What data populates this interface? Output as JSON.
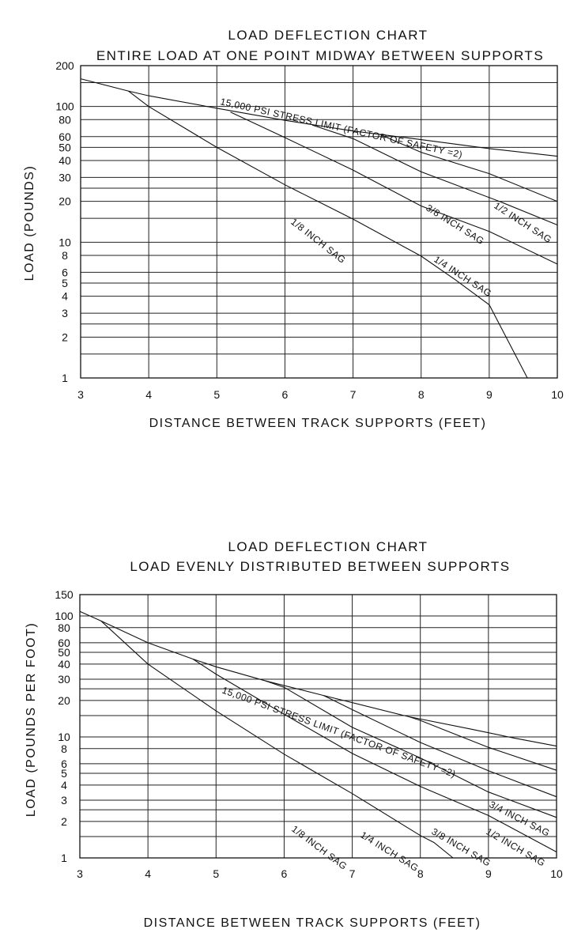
{
  "chart_data": [
    {
      "type": "line",
      "title": "LOAD DEFLECTION CHART",
      "subtitle": "ENTIRE LOAD AT ONE POINT MIDWAY BETWEEN SUPPORTS",
      "xlabel": "DISTANCE BETWEEN TRACK SUPPORTS (FEET)",
      "ylabel": "LOAD (POUNDS)",
      "xlim": [
        3,
        10
      ],
      "ylim": [
        1,
        200
      ],
      "yscale": "log",
      "grid": true,
      "xticks": [
        "3",
        "4",
        "5",
        "6",
        "7",
        "8",
        "9",
        "10"
      ],
      "yticks": [
        "200",
        "100",
        "80",
        "60",
        "50",
        "40",
        "30",
        "20",
        "10",
        "8",
        "6",
        "5",
        "4",
        "3",
        "2",
        "1"
      ],
      "series": [
        {
          "name": "15,000 PSI STRESS LIMIT (FACTOR OF SAFETY =2)",
          "x": [
            3,
            3.7,
            4,
            5,
            6,
            7,
            8,
            9,
            10
          ],
          "y": [
            160,
            130,
            120,
            97,
            79,
            66,
            57,
            49,
            43
          ]
        },
        {
          "name": "1/2 INCH SAG",
          "x": [
            7.4,
            8,
            9,
            10
          ],
          "y": [
            62,
            46,
            32,
            20
          ]
        },
        {
          "name": "3/8 INCH SAG",
          "x": [
            6.4,
            7,
            8,
            9.15,
            10
          ],
          "y": [
            73,
            58,
            33,
            20,
            13.4
          ]
        },
        {
          "name": "1/4 INCH SAG",
          "x": [
            5.2,
            6,
            7,
            8,
            9,
            10
          ],
          "y": [
            91,
            59,
            34,
            18.5,
            12,
            6.9
          ]
        },
        {
          "name": "1/8 INCH SAG",
          "x": [
            3.7,
            4,
            5,
            6,
            7,
            8,
            8.5,
            9,
            9.56
          ],
          "y": [
            130,
            100,
            50,
            26.5,
            14.8,
            7.9,
            5.3,
            3.46,
            1
          ]
        }
      ]
    },
    {
      "type": "line",
      "title": "LOAD DEFLECTION CHART",
      "subtitle": "LOAD EVENLY DISTRIBUTED BETWEEN SUPPORTS",
      "xlabel": "DISTANCE BETWEEN TRACK SUPPORTS (FEET)",
      "ylabel": "LOAD (POUNDS PER FOOT)",
      "xlim": [
        3,
        10
      ],
      "ylim": [
        1,
        150
      ],
      "yscale": "log",
      "grid": true,
      "xticks": [
        "3",
        "4",
        "5",
        "6",
        "7",
        "8",
        "9",
        "10"
      ],
      "yticks": [
        "150",
        "100",
        "80",
        "60",
        "50",
        "40",
        "30",
        "20",
        "10",
        "8",
        "6",
        "5",
        "4",
        "3",
        "2",
        "1"
      ],
      "series": [
        {
          "name": "15,000 PSI STRESS LIMIT (FACTOR OF SAFETY =2)",
          "x": [
            3,
            3.31,
            4,
            4.66,
            5,
            5.73,
            6.58,
            7.83,
            8.74,
            9.37,
            10
          ],
          "y": [
            109,
            91,
            60,
            44,
            38,
            29,
            22,
            14.7,
            11.6,
            9.8,
            8.4
          ]
        },
        {
          "name": "3/4 INCH SAG",
          "x": [
            7.83,
            8,
            9,
            10
          ],
          "y": [
            14.7,
            13.7,
            8.2,
            5.3
          ]
        },
        {
          "name": "1/2 INCH SAG",
          "x": [
            6.58,
            7,
            8,
            9,
            10
          ],
          "y": [
            22,
            16.8,
            9,
            5.25,
            3.2
          ]
        },
        {
          "name": "3/8 INCH SAG",
          "x": [
            5.73,
            6,
            7,
            8,
            9,
            10
          ],
          "y": [
            29,
            25.7,
            12,
            6.7,
            3.5,
            2.16
          ]
        },
        {
          "name": "1/4 INCH SAG",
          "x": [
            4.66,
            5,
            6,
            7,
            8,
            9,
            10
          ],
          "y": [
            44,
            33,
            15.4,
            7.3,
            3.9,
            2.24,
            1.12
          ]
        },
        {
          "name": "1/8 INCH SAG",
          "x": [
            3.31,
            4,
            5,
            6,
            7,
            8,
            8.2,
            8.48
          ],
          "y": [
            91,
            40,
            16.4,
            7.2,
            3.4,
            1.53,
            1.34,
            1
          ]
        }
      ]
    }
  ]
}
